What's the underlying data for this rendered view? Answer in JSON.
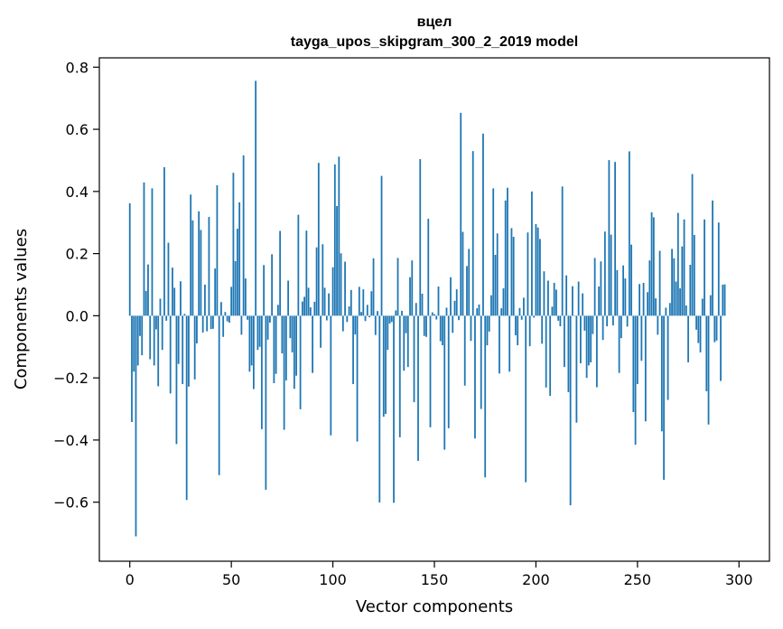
{
  "chart_data": {
    "type": "bar",
    "title": "вцел",
    "subtitle": "tayga_upos_skipgram_300_2_2019 model",
    "xlabel": "Vector components",
    "ylabel": "Components values",
    "xlim": [
      -15,
      315
    ],
    "ylim": [
      -0.79,
      0.83
    ],
    "xticks": [
      0,
      50,
      100,
      150,
      200,
      250,
      300
    ],
    "yticks": [
      -0.6,
      -0.4,
      -0.2,
      0.0,
      0.2,
      0.4,
      0.6,
      0.8
    ],
    "xtick_labels": [
      "0",
      "50",
      "100",
      "150",
      "200",
      "250",
      "300"
    ],
    "ytick_labels": [
      "−0.6",
      "−0.4",
      "−0.2",
      "0.0",
      "0.2",
      "0.4",
      "0.6",
      "0.8"
    ],
    "bar_color": "#1f77b4",
    "grid": false,
    "values": [
      0.362,
      -0.342,
      -0.18,
      -0.71,
      -0.16,
      -0.065,
      -0.127,
      0.429,
      0.08,
      0.165,
      -0.14,
      0.41,
      -0.16,
      -0.044,
      -0.227,
      0.055,
      -0.11,
      0.478,
      -0.016,
      0.235,
      -0.25,
      0.155,
      0.09,
      -0.413,
      -0.155,
      0.111,
      -0.22,
      0.006,
      -0.593,
      -0.228,
      0.39,
      0.307,
      -0.205,
      -0.089,
      0.336,
      0.276,
      -0.054,
      0.1,
      -0.05,
      0.318,
      -0.043,
      -0.042,
      0.152,
      0.42,
      -0.513,
      0.044,
      -0.068,
      0.012,
      -0.018,
      -0.022,
      0.093,
      0.46,
      0.176,
      0.28,
      0.365,
      -0.061,
      0.516,
      0.12,
      -0.013,
      -0.18,
      -0.16,
      -0.236,
      0.756,
      -0.11,
      -0.1,
      -0.365,
      0.163,
      -0.56,
      -0.077,
      -0.022,
      0.198,
      -0.217,
      -0.187,
      0.035,
      0.273,
      -0.121,
      -0.367,
      -0.208,
      0.113,
      -0.072,
      -0.118,
      -0.235,
      -0.193,
      0.325,
      -0.301,
      0.046,
      0.061,
      0.274,
      0.09,
      0.027,
      -0.184,
      0.045,
      0.22,
      0.492,
      -0.103,
      0.23,
      0.09,
      -0.015,
      0.072,
      -0.385,
      0.156,
      0.487,
      0.353,
      0.512,
      0.201,
      -0.05,
      0.174,
      -0.02,
      0.03,
      0.083,
      -0.22,
      -0.06,
      -0.405,
      0.093,
      0.012,
      0.085,
      -0.017,
      0.035,
      -0.005,
      0.079,
      0.185,
      -0.062,
      0.015,
      -0.601,
      0.45,
      -0.325,
      -0.316,
      -0.11,
      -0.025,
      -0.02,
      -0.602,
      0.017,
      0.186,
      -0.391,
      0.016,
      -0.177,
      -0.056,
      -0.165,
      0.124,
      0.178,
      -0.278,
      0.041,
      -0.467,
      0.504,
      0.071,
      -0.065,
      -0.068,
      0.312,
      -0.359,
      0.011,
      0.005,
      -0.012,
      0.094,
      -0.082,
      -0.095,
      -0.431,
      0.026,
      -0.362,
      0.124,
      -0.055,
      0.048,
      0.085,
      -0.014,
      0.653,
      0.27,
      -0.225,
      0.16,
      0.215,
      -0.081,
      0.53,
      -0.395,
      0.024,
      0.036,
      -0.3,
      0.586,
      -0.52,
      -0.095,
      -0.051,
      0.066,
      0.41,
      0.196,
      0.265,
      -0.186,
      0.024,
      0.088,
      0.371,
      0.412,
      -0.18,
      0.282,
      0.254,
      -0.063,
      -0.095,
      0.025,
      -0.013,
      0.058,
      -0.536,
      0.268,
      -0.098,
      0.4,
      -0.006,
      0.295,
      0.284,
      0.247,
      -0.09,
      0.143,
      -0.231,
      0.113,
      -0.258,
      0.029,
      0.106,
      0.084,
      -0.016,
      -0.034,
      0.416,
      -0.165,
      0.13,
      -0.246,
      -0.61,
      0.095,
      0.001,
      -0.344,
      0.11,
      -0.153,
      0.072,
      -0.048,
      -0.2,
      -0.16,
      -0.15,
      -0.059,
      0.186,
      -0.23,
      0.094,
      0.175,
      -0.078,
      0.271,
      -0.034,
      0.501,
      0.261,
      -0.031,
      0.495,
      0.147,
      -0.184,
      -0.072,
      0.162,
      0.12,
      -0.035,
      0.529,
      0.229,
      -0.31,
      -0.415,
      -0.22,
      0.102,
      -0.145,
      0.106,
      -0.34,
      0.076,
      0.178,
      0.333,
      0.317,
      0.056,
      -0.061,
      0.209,
      -0.372,
      -0.528,
      0.026,
      -0.271,
      0.041,
      0.215,
      0.185,
      0.11,
      0.331,
      0.088,
      0.223,
      0.31,
      0.033,
      -0.15,
      0.164,
      0.456,
      0.26,
      -0.045,
      -0.088,
      -0.118,
      0.055,
      0.31,
      -0.243,
      -0.35,
      0.066,
      0.371,
      -0.085,
      -0.08,
      0.3,
      -0.21,
      0.1,
      0.101
    ]
  }
}
